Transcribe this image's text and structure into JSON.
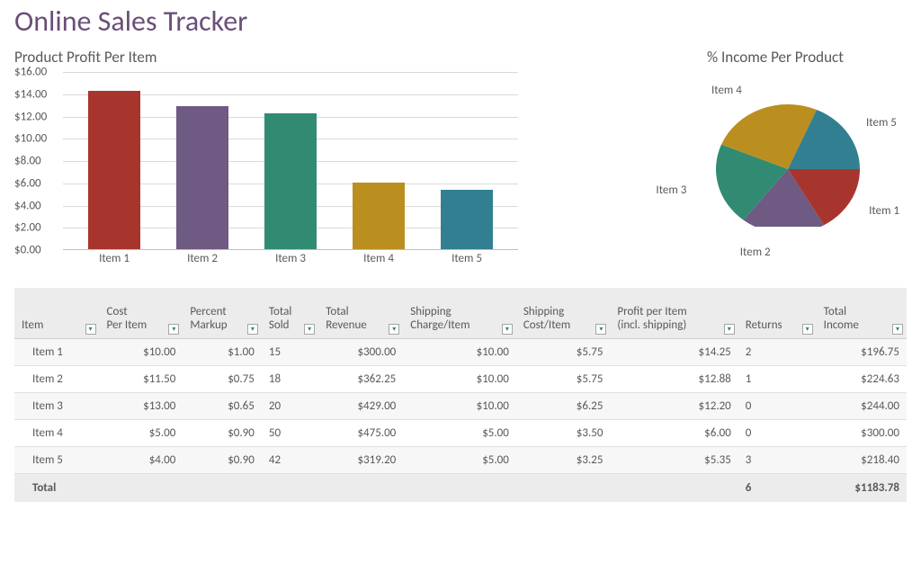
{
  "page": {
    "title": "Online Sales Tracker",
    "title_color": "#6a4f78",
    "background_color": "#ffffff"
  },
  "bar_chart": {
    "type": "bar",
    "title": "Product Profit Per Item",
    "categories": [
      "Item 1",
      "Item 2",
      "Item 3",
      "Item 4",
      "Item 5"
    ],
    "values": [
      14.25,
      12.88,
      12.2,
      6.0,
      5.35
    ],
    "bar_colors": [
      "#a7352d",
      "#6e5a82",
      "#318b73",
      "#ba8f1f",
      "#327f91"
    ],
    "ylim": [
      0,
      16
    ],
    "ytick_step": 2,
    "ytick_prefix": "$",
    "ytick_decimals": 2,
    "grid_color": "#d9d9d9",
    "axis_color": "#bfbfbf",
    "label_fontsize": 13,
    "title_fontsize": 17,
    "bar_width": 0.7
  },
  "pie_chart": {
    "type": "pie",
    "title": "% Income Per Product",
    "labels": [
      "Item 1",
      "Item 2",
      "Item 3",
      "Item 4",
      "Item 5"
    ],
    "values": [
      196.75,
      224.63,
      244.0,
      300.0,
      218.4
    ],
    "slice_colors": [
      "#a7352d",
      "#6e5a82",
      "#318b73",
      "#ba8f1f",
      "#327f91"
    ],
    "start_angle_deg": 90,
    "direction": "clockwise",
    "title_fontsize": 17,
    "label_fontsize": 13
  },
  "table": {
    "columns": [
      {
        "key": "item",
        "label": "Item",
        "align": "left",
        "prefix": ""
      },
      {
        "key": "cost_per_item",
        "label": "Cost\nPer Item",
        "align": "right",
        "prefix": "$",
        "decimals": 2
      },
      {
        "key": "percent_markup",
        "label": "Percent\nMarkup",
        "align": "right",
        "prefix": "$",
        "decimals": 2
      },
      {
        "key": "total_sold",
        "label": "Total\nSold",
        "align": "left",
        "prefix": ""
      },
      {
        "key": "total_revenue",
        "label": "Total\nRevenue",
        "align": "right",
        "prefix": "$",
        "decimals": 2
      },
      {
        "key": "shipping_charge",
        "label": "Shipping\nCharge/Item",
        "align": "right",
        "prefix": "$",
        "decimals": 2
      },
      {
        "key": "shipping_cost",
        "label": "Shipping\nCost/Item",
        "align": "right",
        "prefix": "$",
        "decimals": 2
      },
      {
        "key": "profit_per_item",
        "label": "Profit per Item\n(incl. shipping)",
        "align": "right",
        "prefix": "$",
        "decimals": 2
      },
      {
        "key": "returns",
        "label": "Returns",
        "align": "left",
        "prefix": ""
      },
      {
        "key": "total_income",
        "label": "Total\nIncome",
        "align": "right",
        "prefix": "$",
        "decimals": 2
      }
    ],
    "rows": [
      {
        "item": "Item 1",
        "cost_per_item": 10.0,
        "percent_markup": 1.0,
        "total_sold": 15,
        "total_revenue": 300.0,
        "shipping_charge": 10.0,
        "shipping_cost": 5.75,
        "profit_per_item": 14.25,
        "returns": 2,
        "total_income": 196.75
      },
      {
        "item": "Item 2",
        "cost_per_item": 11.5,
        "percent_markup": 0.75,
        "total_sold": 18,
        "total_revenue": 362.25,
        "shipping_charge": 10.0,
        "shipping_cost": 5.75,
        "profit_per_item": 12.88,
        "returns": 1,
        "total_income": 224.63
      },
      {
        "item": "Item 3",
        "cost_per_item": 13.0,
        "percent_markup": 0.65,
        "total_sold": 20,
        "total_revenue": 429.0,
        "shipping_charge": 10.0,
        "shipping_cost": 6.25,
        "profit_per_item": 12.2,
        "returns": 0,
        "total_income": 244.0
      },
      {
        "item": "Item 4",
        "cost_per_item": 5.0,
        "percent_markup": 0.9,
        "total_sold": 50,
        "total_revenue": 475.0,
        "shipping_charge": 5.0,
        "shipping_cost": 3.5,
        "profit_per_item": 6.0,
        "returns": 0,
        "total_income": 300.0
      },
      {
        "item": "Item 5",
        "cost_per_item": 4.0,
        "percent_markup": 0.9,
        "total_sold": 42,
        "total_revenue": 319.2,
        "shipping_charge": 5.0,
        "shipping_cost": 3.25,
        "profit_per_item": 5.35,
        "returns": 3,
        "total_income": 218.4
      }
    ],
    "footer": {
      "label": "Total",
      "returns": 6,
      "total_income": 1183.78
    },
    "header_bg": "#ececec",
    "row_alt_bg": "#f7f7f7",
    "border_color": "#e0e0e0"
  }
}
